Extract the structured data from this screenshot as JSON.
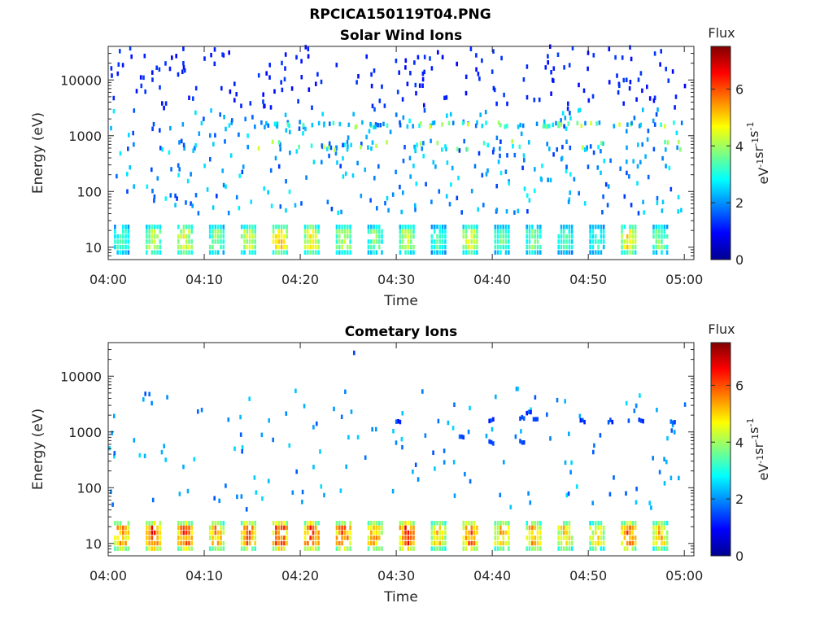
{
  "figure_title": "RPCICA150119T04.PNG",
  "chart_data": [
    {
      "type": "heatmap",
      "title": "Solar Wind Ions",
      "xlabel": "Time",
      "ylabel": "Energy (eV)",
      "x_range": [
        "04:00",
        "05:01"
      ],
      "x_ticks": [
        "04:00",
        "04:10",
        "04:20",
        "04:30",
        "04:40",
        "04:50",
        "05:00"
      ],
      "y_scale": "log",
      "y_range": [
        6,
        40000
      ],
      "y_ticks": [
        "10",
        "100",
        "1000",
        "10000"
      ],
      "colorbar": {
        "label": "Flux",
        "unit": "eV-1cm-2sr-1s-1",
        "range": [
          0,
          7.5
        ],
        "ticks": [
          "0",
          "2",
          "4",
          "6"
        ],
        "colormap": "jet"
      },
      "cycles_minutes": [
        1.5,
        4.8,
        8.1,
        11.4,
        14.7,
        18.0,
        21.3,
        24.6,
        27.9,
        31.2,
        34.5,
        37.8,
        41.1,
        44.4,
        47.7,
        51.0,
        54.3,
        57.6
      ],
      "low_band_peak_flux": [
        3.6,
        4.5,
        4.8,
        4.0,
        4.5,
        5.3,
        4.9,
        4.4,
        3.9,
        4.4,
        3.6,
        4.6,
        3.7,
        3.9,
        3.5,
        3.3,
        5.0,
        3.9
      ],
      "low_band_energy_ev": [
        8,
        24
      ],
      "features": [
        {
          "label": "pickup band",
          "energy_ev": [
            500,
            1700
          ],
          "flux": [
            1.5,
            4.5
          ]
        },
        {
          "label": "scattered counts",
          "energy_ev": [
            40,
            40000
          ],
          "flux": [
            0.8,
            2.5
          ]
        }
      ]
    },
    {
      "type": "heatmap",
      "title": "Cometary Ions",
      "xlabel": "Time",
      "ylabel": "Energy (eV)",
      "x_range": [
        "04:00",
        "05:01"
      ],
      "x_ticks": [
        "04:00",
        "04:10",
        "04:20",
        "04:30",
        "04:40",
        "04:50",
        "05:00"
      ],
      "y_scale": "log",
      "y_range": [
        6,
        40000
      ],
      "y_ticks": [
        "10",
        "100",
        "1000",
        "10000"
      ],
      "colorbar": {
        "label": "Flux",
        "unit": "eV-1cm-2sr-1s-1",
        "range": [
          0,
          7.5
        ],
        "ticks": [
          "0",
          "2",
          "4",
          "6"
        ],
        "colormap": "jet"
      },
      "cycles_minutes": [
        1.5,
        4.8,
        8.1,
        11.4,
        14.7,
        18.0,
        21.3,
        24.6,
        27.9,
        31.2,
        34.5,
        37.8,
        41.1,
        44.4,
        47.7,
        51.0,
        54.3,
        57.6
      ],
      "low_band_peak_flux": [
        5.8,
        6.4,
        6.2,
        5.5,
        6.0,
        6.5,
        6.3,
        6.2,
        5.6,
        6.4,
        5.2,
        6.1,
        5.4,
        5.6,
        5.2,
        5.0,
        6.0,
        5.3
      ],
      "low_band_energy_ev": [
        8,
        24
      ],
      "features": [
        {
          "label": "high energy counts",
          "energy_ev": [
            400,
            2700
          ],
          "flux": [
            1.0,
            2.0
          ]
        },
        {
          "label": "scattered counts",
          "energy_ev": [
            50,
            6000
          ],
          "flux": [
            1.5,
            2.5
          ]
        }
      ]
    }
  ]
}
